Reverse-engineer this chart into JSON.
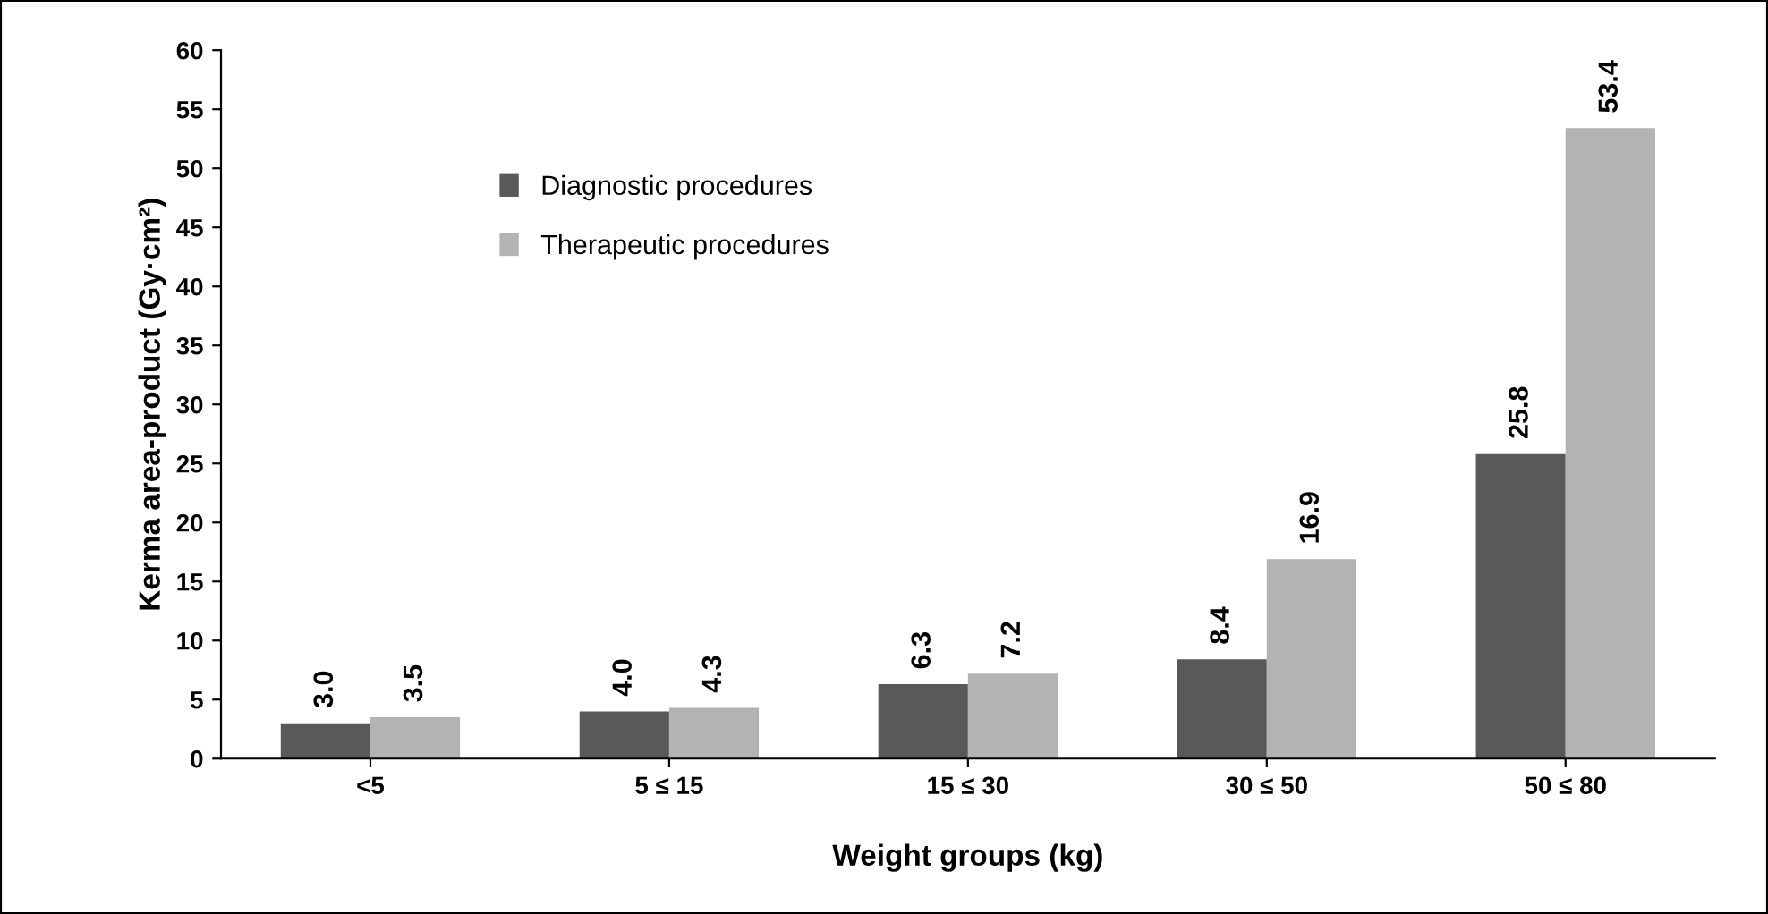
{
  "chart_data": {
    "type": "bar",
    "xlabel": "Weight groups (kg)",
    "ylabel": "Kerma area-product (Gy·cm²)",
    "categories": [
      "<5",
      "5 ≤ 15",
      "15 ≤ 30",
      "30 ≤ 50",
      "50 ≤ 80"
    ],
    "series": [
      {
        "name": "Diagnostic procedures",
        "color": "#595959",
        "values": [
          3.0,
          4.0,
          6.3,
          8.4,
          25.8
        ],
        "value_labels": [
          "3.0",
          "4.0",
          "6.3",
          "8.4",
          "25.8"
        ]
      },
      {
        "name": "Therapeutic procedures",
        "color": "#b3b3b3",
        "values": [
          3.5,
          4.3,
          7.2,
          16.9,
          53.4
        ],
        "value_labels": [
          "3.5",
          "4.3",
          "7.2",
          "16.9",
          "53.4"
        ]
      }
    ],
    "ylim": [
      0,
      60
    ],
    "yticks": [
      0,
      5,
      10,
      15,
      20,
      25,
      30,
      35,
      40,
      45,
      50,
      55,
      60
    ],
    "grid": false,
    "legend": "top left"
  }
}
